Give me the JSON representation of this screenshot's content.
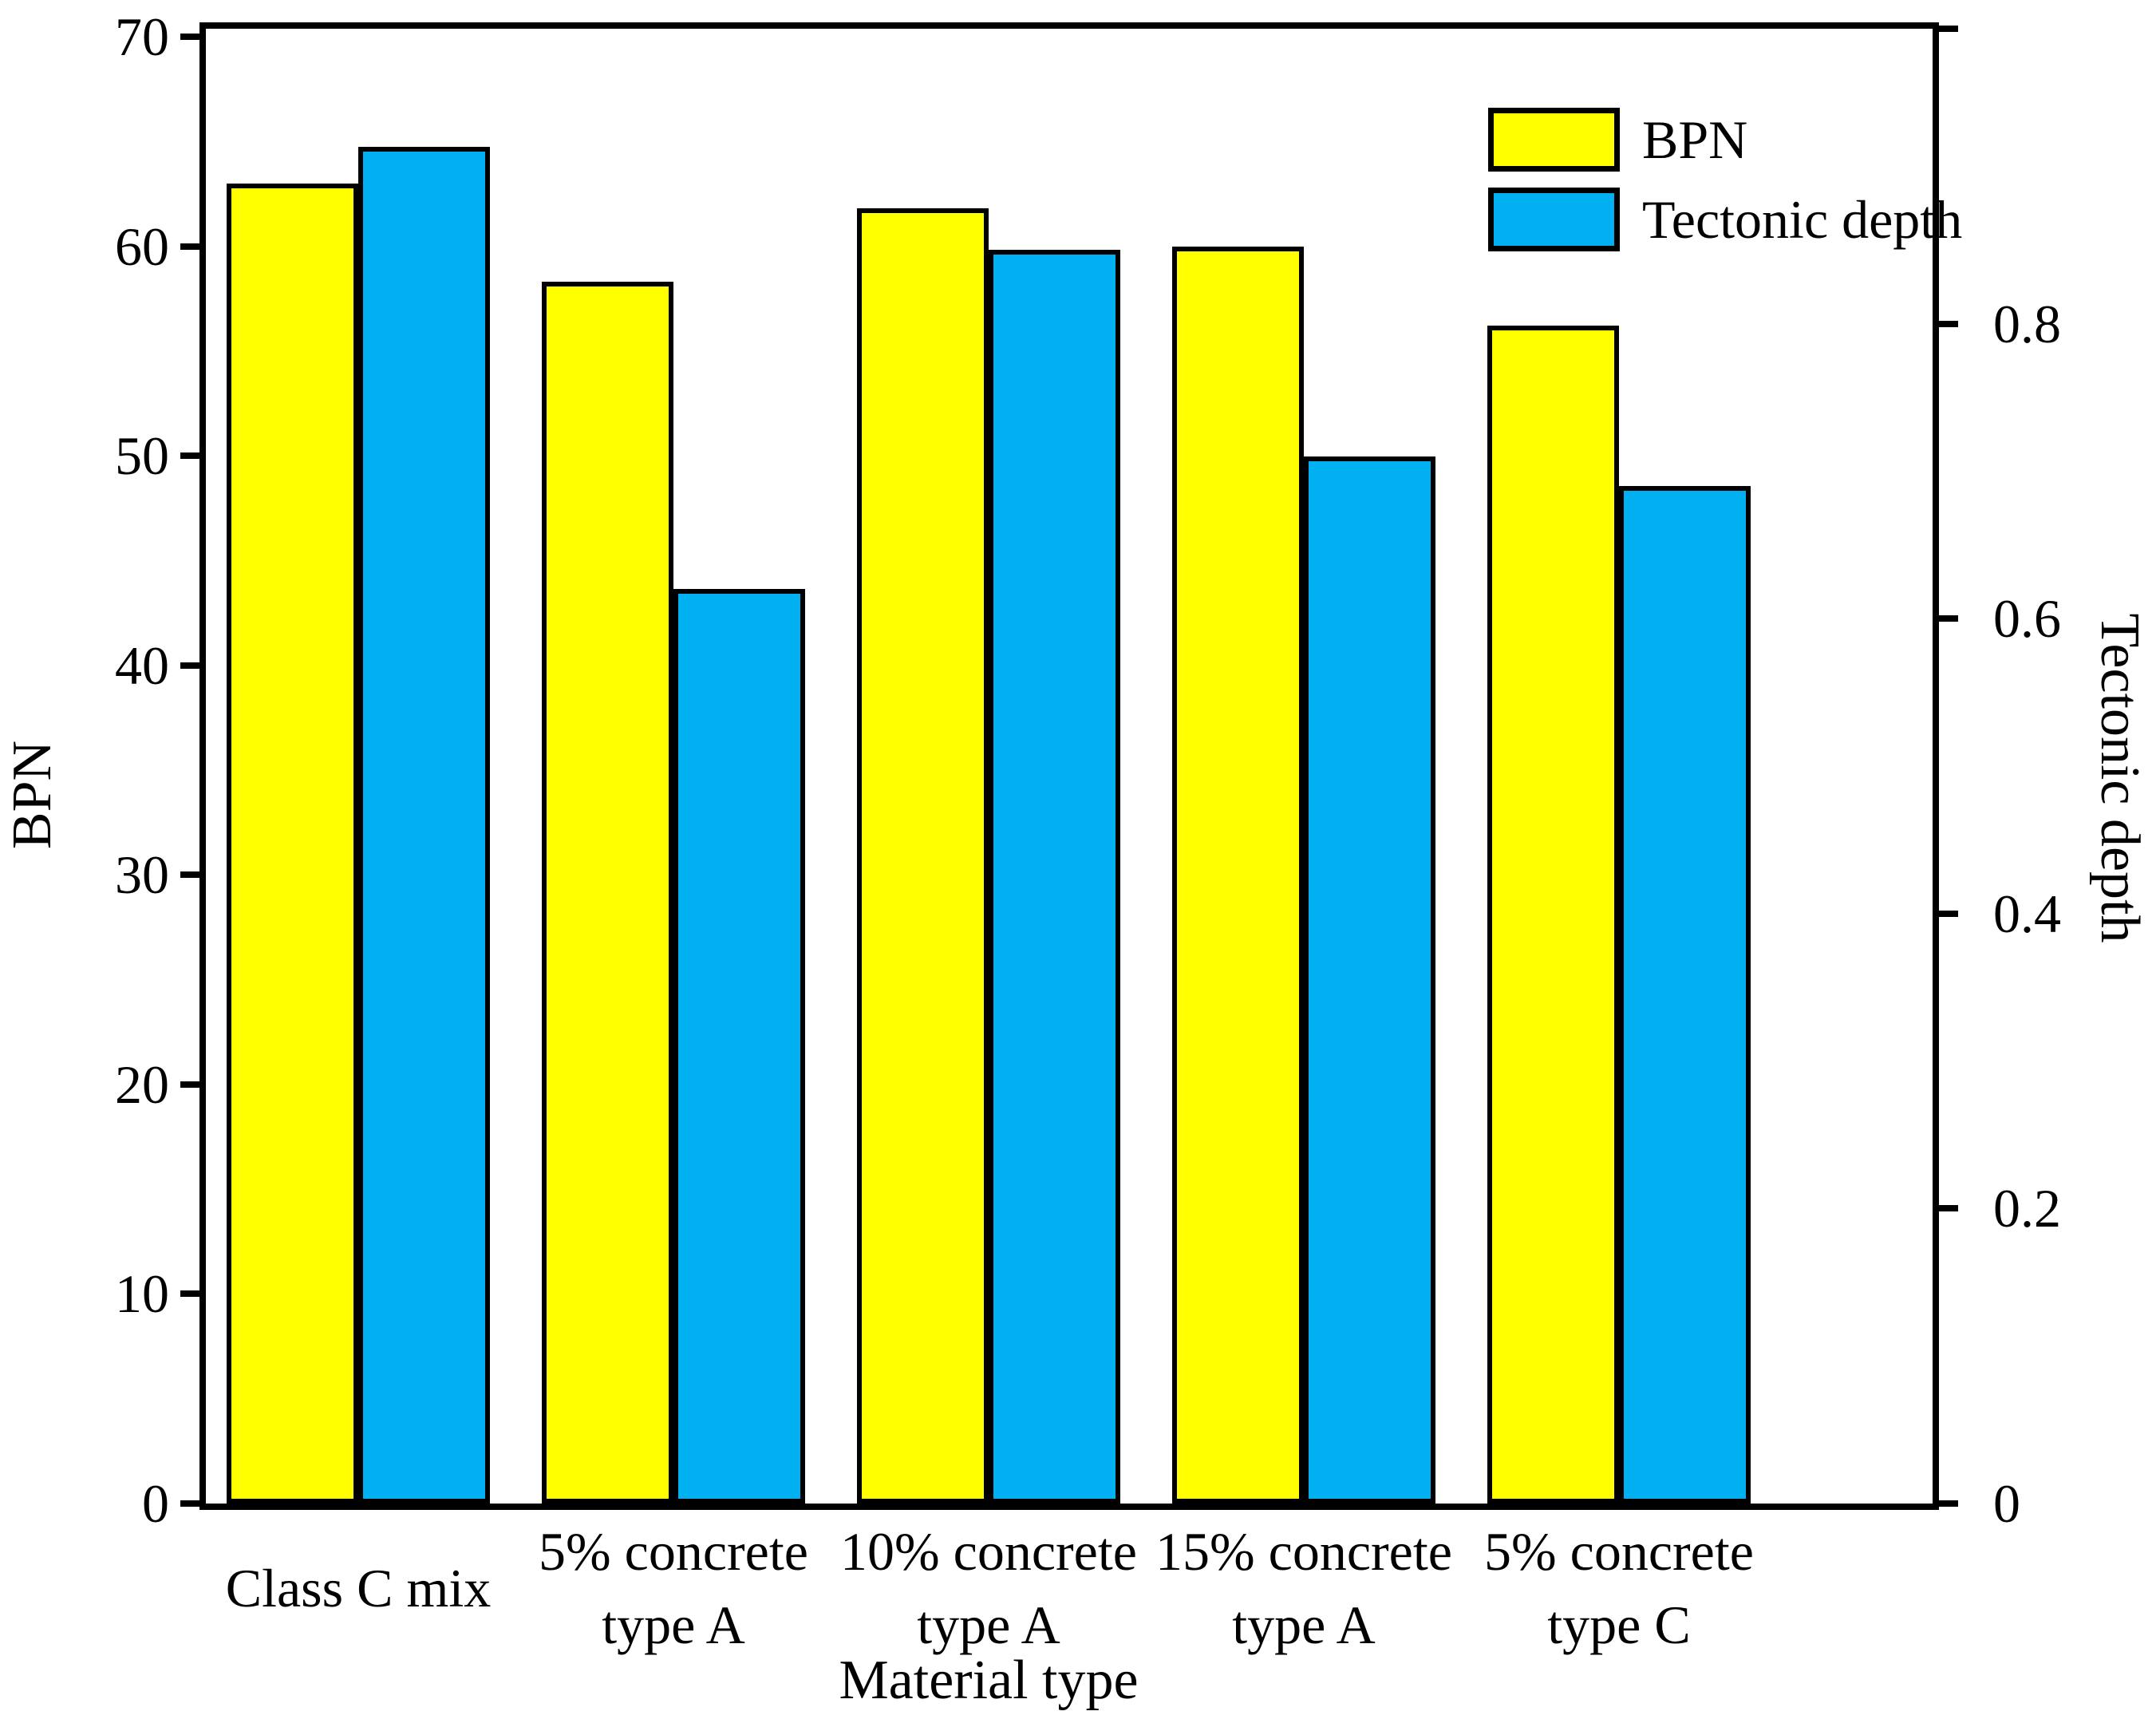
{
  "figure": {
    "background": "#ffffff"
  },
  "chart_data": {
    "type": "bar",
    "title": "",
    "grid": false,
    "categories": [
      [
        "Class C mix"
      ],
      [
        "5% concrete",
        "type A"
      ],
      [
        "10% concrete",
        "type A"
      ],
      [
        "15% concrete",
        "type A"
      ],
      [
        "5% concrete",
        "type C"
      ]
    ],
    "series": [
      {
        "name": "BPN",
        "axis": "left",
        "color": "#ffff00",
        "values": [
          63,
          58.3,
          61.8,
          60,
          56.2
        ]
      },
      {
        "name": "Tectonic depth",
        "axis": "right",
        "color": "#00b0f0",
        "values": [
          0.92,
          0.62,
          0.85,
          0.71,
          0.69
        ]
      }
    ],
    "x_axis": {
      "label": "Material type"
    },
    "left_axis": {
      "label": "BPN",
      "min": 0,
      "max": 70,
      "ticks": [
        0,
        10,
        20,
        30,
        40,
        50,
        60,
        70
      ],
      "tick_labels": [
        "0",
        "10",
        "20",
        "30",
        "40",
        "50",
        "60",
        "70"
      ]
    },
    "right_axis": {
      "label": "Tectonic depth",
      "min": 0,
      "max": 1.0,
      "ticks": [
        0,
        0.2,
        0.4,
        0.6,
        0.8,
        1.0
      ],
      "tick_labels": [
        "0",
        "0.2",
        "0.4",
        "0.6",
        "0.8",
        ""
      ]
    },
    "legend": {
      "position": "top-right",
      "entries": [
        {
          "label": "BPN",
          "color": "#ffff00"
        },
        {
          "label": "Tectonic depth",
          "color": "#00b0f0"
        }
      ]
    },
    "bar_border_color": "#000000"
  }
}
